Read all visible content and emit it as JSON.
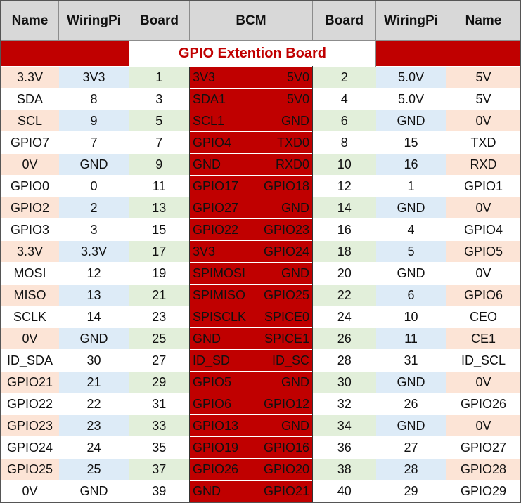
{
  "headers": [
    "Name",
    "WiringPi",
    "Board",
    "BCM",
    "Board",
    "WiringPi",
    "Name"
  ],
  "banner_title": "GPIO Extention Board",
  "colors": {
    "red": "#c00000",
    "peach": "#fce4d6",
    "light_blue": "#ddebf7",
    "light_green": "#e2efda",
    "header_gray": "#d8d8d8"
  },
  "rows": [
    {
      "l_name": "3.3V",
      "l_wpi": "3V3",
      "l_board": "1",
      "l_bcm": "3V3",
      "r_bcm": "5V0",
      "r_board": "2",
      "r_wpi": "5.0V",
      "r_name": "5V",
      "l_name_bg": "peach",
      "l_wpi_bg": "blue",
      "r_wpi_bg": "blue",
      "r_name_bg": "peach"
    },
    {
      "l_name": "SDA",
      "l_wpi": "8",
      "l_board": "3",
      "l_bcm": "SDA1",
      "r_bcm": "5V0",
      "r_board": "4",
      "r_wpi": "5.0V",
      "r_name": "5V",
      "l_name_bg": "white",
      "l_wpi_bg": "white",
      "r_wpi_bg": "white",
      "r_name_bg": "white"
    },
    {
      "l_name": "SCL",
      "l_wpi": "9",
      "l_board": "5",
      "l_bcm": "SCL1",
      "r_bcm": "GND",
      "r_board": "6",
      "r_wpi": "GND",
      "r_name": "0V",
      "l_name_bg": "peach",
      "l_wpi_bg": "blue",
      "r_wpi_bg": "blue",
      "r_name_bg": "peach"
    },
    {
      "l_name": "GPIO7",
      "l_wpi": "7",
      "l_board": "7",
      "l_bcm": "GPIO4",
      "r_bcm": "TXD0",
      "r_board": "8",
      "r_wpi": "15",
      "r_name": "TXD",
      "l_name_bg": "white",
      "l_wpi_bg": "white",
      "r_wpi_bg": "white",
      "r_name_bg": "white"
    },
    {
      "l_name": "0V",
      "l_wpi": "GND",
      "l_board": "9",
      "l_bcm": "GND",
      "r_bcm": "RXD0",
      "r_board": "10",
      "r_wpi": "16",
      "r_name": "RXD",
      "l_name_bg": "peach",
      "l_wpi_bg": "blue",
      "r_wpi_bg": "blue",
      "r_name_bg": "peach"
    },
    {
      "l_name": "GPIO0",
      "l_wpi": "0",
      "l_board": "11",
      "l_bcm": "GPIO17",
      "r_bcm": "GPIO18",
      "r_board": "12",
      "r_wpi": "1",
      "r_name": "GPIO1",
      "l_name_bg": "white",
      "l_wpi_bg": "white",
      "r_wpi_bg": "white",
      "r_name_bg": "white"
    },
    {
      "l_name": "GPIO2",
      "l_wpi": "2",
      "l_board": "13",
      "l_bcm": "GPIO27",
      "r_bcm": "GND",
      "r_board": "14",
      "r_wpi": "GND",
      "r_name": "0V",
      "l_name_bg": "peach",
      "l_wpi_bg": "blue",
      "r_wpi_bg": "blue",
      "r_name_bg": "peach"
    },
    {
      "l_name": "GPIO3",
      "l_wpi": "3",
      "l_board": "15",
      "l_bcm": "GPIO22",
      "r_bcm": "GPIO23",
      "r_board": "16",
      "r_wpi": "4",
      "r_name": "GPIO4",
      "l_name_bg": "white",
      "l_wpi_bg": "white",
      "r_wpi_bg": "white",
      "r_name_bg": "white"
    },
    {
      "l_name": "3.3V",
      "l_wpi": "3.3V",
      "l_board": "17",
      "l_bcm": "3V3",
      "r_bcm": "GPIO24",
      "r_board": "18",
      "r_wpi": "5",
      "r_name": "GPIO5",
      "l_name_bg": "peach",
      "l_wpi_bg": "blue",
      "r_wpi_bg": "blue",
      "r_name_bg": "peach"
    },
    {
      "l_name": "MOSI",
      "l_wpi": "12",
      "l_board": "19",
      "l_bcm": "SPIMOSI",
      "r_bcm": "GND",
      "r_board": "20",
      "r_wpi": "GND",
      "r_name": "0V",
      "l_name_bg": "white",
      "l_wpi_bg": "white",
      "r_wpi_bg": "white",
      "r_name_bg": "white"
    },
    {
      "l_name": "MISO",
      "l_wpi": "13",
      "l_board": "21",
      "l_bcm": "SPIMISO",
      "r_bcm": "GPIO25",
      "r_board": "22",
      "r_wpi": "6",
      "r_name": "GPIO6",
      "l_name_bg": "peach",
      "l_wpi_bg": "blue",
      "r_wpi_bg": "blue",
      "r_name_bg": "peach"
    },
    {
      "l_name": "SCLK",
      "l_wpi": "14",
      "l_board": "23",
      "l_bcm": "SPISCLK",
      "r_bcm": "SPICE0",
      "r_board": "24",
      "r_wpi": "10",
      "r_name": "CEO",
      "l_name_bg": "white",
      "l_wpi_bg": "white",
      "r_wpi_bg": "white",
      "r_name_bg": "white"
    },
    {
      "l_name": "0V",
      "l_wpi": "GND",
      "l_board": "25",
      "l_bcm": "GND",
      "r_bcm": "SPICE1",
      "r_board": "26",
      "r_wpi": "11",
      "r_name": "CE1",
      "l_name_bg": "peach",
      "l_wpi_bg": "blue",
      "r_wpi_bg": "blue",
      "r_name_bg": "peach"
    },
    {
      "l_name": "ID_SDA",
      "l_wpi": "30",
      "l_board": "27",
      "l_bcm": "ID_SD",
      "r_bcm": "ID_SC",
      "r_board": "28",
      "r_wpi": "31",
      "r_name": "ID_SCL",
      "l_name_bg": "white",
      "l_wpi_bg": "white",
      "r_wpi_bg": "white",
      "r_name_bg": "white"
    },
    {
      "l_name": "GPIO21",
      "l_wpi": "21",
      "l_board": "29",
      "l_bcm": "GPIO5",
      "r_bcm": "GND",
      "r_board": "30",
      "r_wpi": "GND",
      "r_name": "0V",
      "l_name_bg": "peach",
      "l_wpi_bg": "blue",
      "r_wpi_bg": "blue",
      "r_name_bg": "peach"
    },
    {
      "l_name": "GPIO22",
      "l_wpi": "22",
      "l_board": "31",
      "l_bcm": "GPIO6",
      "r_bcm": "GPIO12",
      "r_board": "32",
      "r_wpi": "26",
      "r_name": "GPIO26",
      "l_name_bg": "white",
      "l_wpi_bg": "white",
      "r_wpi_bg": "white",
      "r_name_bg": "white"
    },
    {
      "l_name": "GPIO23",
      "l_wpi": "23",
      "l_board": "33",
      "l_bcm": "GPIO13",
      "r_bcm": "GND",
      "r_board": "34",
      "r_wpi": "GND",
      "r_name": "0V",
      "l_name_bg": "peach",
      "l_wpi_bg": "blue",
      "r_wpi_bg": "blue",
      "r_name_bg": "peach"
    },
    {
      "l_name": "GPIO24",
      "l_wpi": "24",
      "l_board": "35",
      "l_bcm": "GPIO19",
      "r_bcm": "GPIO16",
      "r_board": "36",
      "r_wpi": "27",
      "r_name": "GPIO27",
      "l_name_bg": "white",
      "l_wpi_bg": "white",
      "r_wpi_bg": "white",
      "r_name_bg": "white"
    },
    {
      "l_name": "GPIO25",
      "l_wpi": "25",
      "l_board": "37",
      "l_bcm": "GPIO26",
      "r_bcm": "GPIO20",
      "r_board": "38",
      "r_wpi": "28",
      "r_name": "GPIO28",
      "l_name_bg": "peach",
      "l_wpi_bg": "blue",
      "r_wpi_bg": "blue",
      "r_name_bg": "peach"
    },
    {
      "l_name": "0V",
      "l_wpi": "GND",
      "l_board": "39",
      "l_bcm": "GND",
      "r_bcm": "GPIO21",
      "r_board": "40",
      "r_wpi": "29",
      "r_name": "GPIO29",
      "l_name_bg": "white",
      "l_wpi_bg": "white",
      "r_wpi_bg": "white",
      "r_name_bg": "white"
    }
  ]
}
